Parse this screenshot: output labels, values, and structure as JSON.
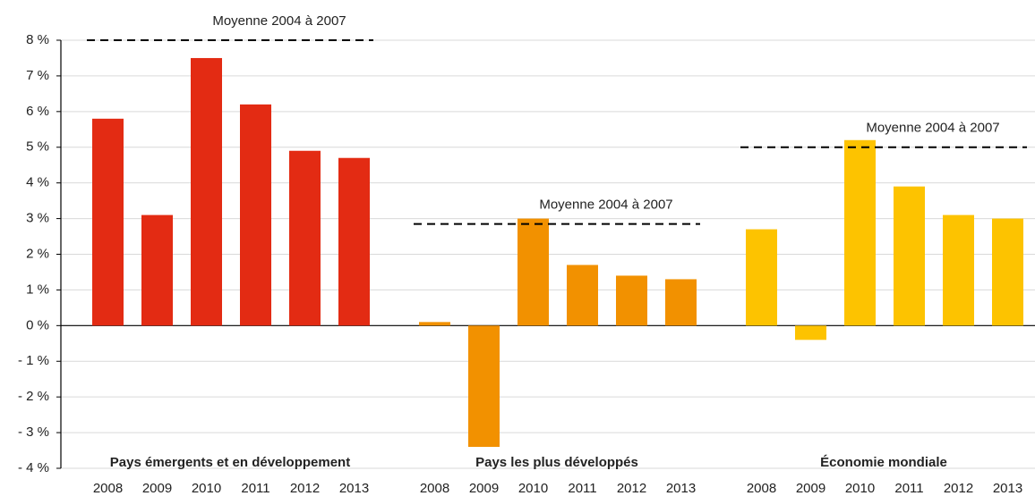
{
  "chart_data": {
    "type": "bar",
    "ylim": [
      -4,
      8
    ],
    "yticks": [
      {
        "value": -4,
        "label": "- 4 %"
      },
      {
        "value": -3,
        "label": "- 3 %"
      },
      {
        "value": -2,
        "label": "- 2 %"
      },
      {
        "value": -1,
        "label": "- 1 %"
      },
      {
        "value": 0,
        "label": "0 %"
      },
      {
        "value": 1,
        "label": "1 %"
      },
      {
        "value": 2,
        "label": "2 %"
      },
      {
        "value": 3,
        "label": "3 %"
      },
      {
        "value": 4,
        "label": "4 %"
      },
      {
        "value": 5,
        "label": "5 %"
      },
      {
        "value": 6,
        "label": "6 %"
      },
      {
        "value": 7,
        "label": "7 %"
      },
      {
        "value": 8,
        "label": "8 %"
      }
    ],
    "grid": true,
    "series": [
      {
        "name": "Pays émergents et en développement",
        "color": "#e32b13",
        "categories": [
          "2008",
          "2009",
          "2010",
          "2011",
          "2012",
          "2013"
        ],
        "values": [
          5.8,
          3.1,
          7.5,
          6.2,
          4.9,
          4.7
        ],
        "reference": {
          "label": "Moyenne 2004 à 2007",
          "value": 8
        }
      },
      {
        "name": "Pays les plus développés",
        "color": "#f29100",
        "categories": [
          "2008",
          "2009",
          "2010",
          "2011",
          "2012",
          "2013"
        ],
        "values": [
          0.1,
          -3.4,
          3.0,
          1.7,
          1.4,
          1.3
        ],
        "reference": {
          "label": "Moyenne 2004 à 2007",
          "value": 2.85
        }
      },
      {
        "name": "Économie mondiale",
        "color": "#fdc300",
        "categories": [
          "2008",
          "2009",
          "2010",
          "2011",
          "2012",
          "2013"
        ],
        "values": [
          2.7,
          -0.4,
          5.2,
          3.9,
          3.1,
          3.0
        ],
        "reference": {
          "label": "Moyenne 2004 à 2007",
          "value": 5
        }
      }
    ]
  }
}
